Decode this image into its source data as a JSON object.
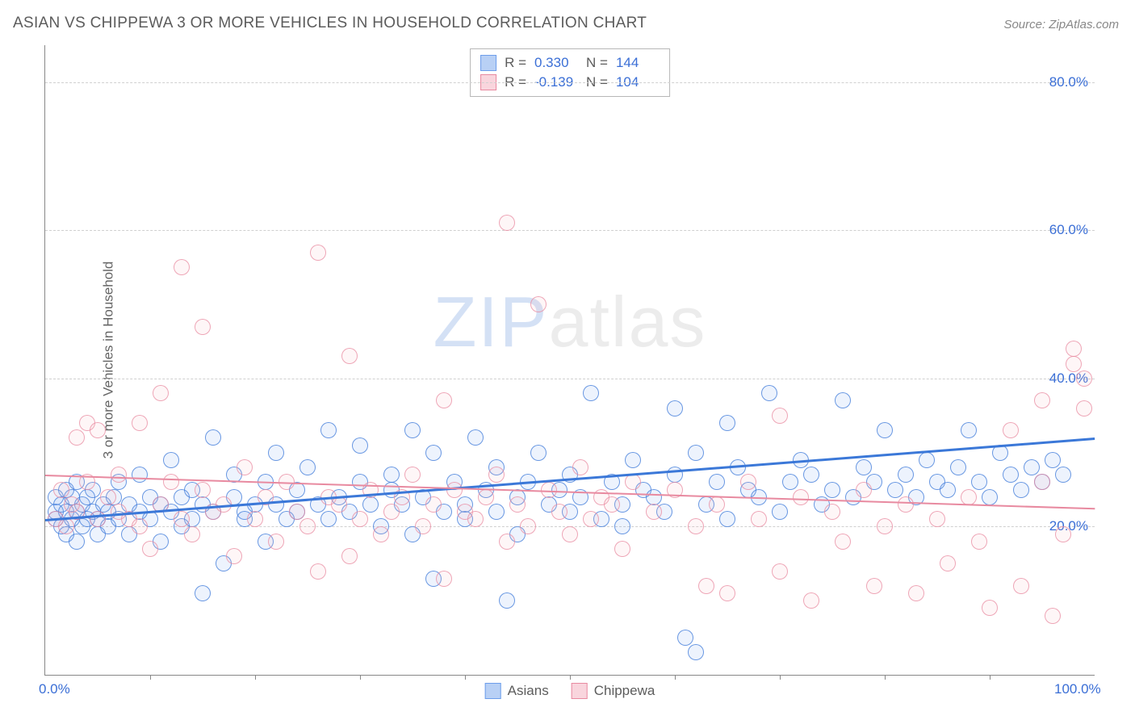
{
  "title": "ASIAN VS CHIPPEWA 3 OR MORE VEHICLES IN HOUSEHOLD CORRELATION CHART",
  "source": "Source: ZipAtlas.com",
  "ylabel": "3 or more Vehicles in Household",
  "watermark": {
    "part1": "ZIP",
    "part2": "atlas"
  },
  "chart": {
    "type": "scatter",
    "background_color": "#ffffff",
    "grid_color": "#d0d0d0",
    "axis_color": "#888888",
    "tick_label_color": "#3b6fd6",
    "text_color": "#666666",
    "title_color": "#5c5c5c",
    "title_fontsize": 19,
    "label_fontsize": 17,
    "tick_fontsize": 17,
    "xlim": [
      0,
      100
    ],
    "ylim": [
      0,
      85
    ],
    "xticks_minor_step": 10,
    "xtick_labels": [
      {
        "value": 0,
        "label": "0.0%"
      },
      {
        "value": 100,
        "label": "100.0%"
      }
    ],
    "yticks": [
      {
        "value": 20,
        "label": "20.0%"
      },
      {
        "value": 40,
        "label": "40.0%"
      },
      {
        "value": 60,
        "label": "60.0%"
      },
      {
        "value": 80,
        "label": "80.0%"
      }
    ],
    "marker_radius": 9,
    "marker_fill_opacity": 0.12,
    "marker_stroke_opacity": 0.75,
    "marker_stroke_width": 1.3,
    "series": [
      {
        "name": "Asians",
        "color": "#6d9eeb",
        "stroke": "#3b78d8",
        "trend": {
          "x1": 0,
          "y1": 21,
          "x2": 100,
          "y2": 32,
          "color": "#3b78d8",
          "width": 2.5
        },
        "stats": {
          "R": "0.330",
          "N": "144"
        },
        "points": [
          [
            1,
            22
          ],
          [
            1,
            21
          ],
          [
            1,
            24
          ],
          [
            1.5,
            20
          ],
          [
            1.5,
            23
          ],
          [
            2,
            22
          ],
          [
            2,
            25
          ],
          [
            2,
            19
          ],
          [
            2.5,
            21
          ],
          [
            2.5,
            24
          ],
          [
            3,
            22
          ],
          [
            3,
            18
          ],
          [
            3,
            26
          ],
          [
            3.5,
            23
          ],
          [
            3.5,
            20
          ],
          [
            4,
            21
          ],
          [
            4,
            24
          ],
          [
            4.5,
            22
          ],
          [
            4.5,
            25
          ],
          [
            5,
            21
          ],
          [
            5,
            19
          ],
          [
            5.5,
            23
          ],
          [
            6,
            22
          ],
          [
            6,
            20
          ],
          [
            6.5,
            24
          ],
          [
            7,
            21
          ],
          [
            7,
            26
          ],
          [
            8,
            23
          ],
          [
            8,
            19
          ],
          [
            9,
            22
          ],
          [
            9,
            27
          ],
          [
            10,
            24
          ],
          [
            10,
            21
          ],
          [
            11,
            23
          ],
          [
            11,
            18
          ],
          [
            12,
            22
          ],
          [
            12,
            29
          ],
          [
            13,
            24
          ],
          [
            13,
            20
          ],
          [
            14,
            21
          ],
          [
            14,
            25
          ],
          [
            15,
            23
          ],
          [
            15,
            11
          ],
          [
            16,
            32
          ],
          [
            16,
            22
          ],
          [
            17,
            15
          ],
          [
            18,
            24
          ],
          [
            18,
            27
          ],
          [
            19,
            22
          ],
          [
            19,
            21
          ],
          [
            20,
            23
          ],
          [
            21,
            26
          ],
          [
            21,
            18
          ],
          [
            22,
            30
          ],
          [
            22,
            23
          ],
          [
            23,
            21
          ],
          [
            24,
            25
          ],
          [
            24,
            22
          ],
          [
            25,
            28
          ],
          [
            26,
            23
          ],
          [
            27,
            33
          ],
          [
            27,
            21
          ],
          [
            28,
            24
          ],
          [
            29,
            22
          ],
          [
            30,
            31
          ],
          [
            30,
            26
          ],
          [
            31,
            23
          ],
          [
            32,
            20
          ],
          [
            33,
            25
          ],
          [
            33,
            27
          ],
          [
            34,
            23
          ],
          [
            35,
            33
          ],
          [
            35,
            19
          ],
          [
            36,
            24
          ],
          [
            37,
            30
          ],
          [
            37,
            13
          ],
          [
            38,
            22
          ],
          [
            39,
            26
          ],
          [
            40,
            23
          ],
          [
            40,
            21
          ],
          [
            41,
            32
          ],
          [
            42,
            25
          ],
          [
            43,
            22
          ],
          [
            43,
            28
          ],
          [
            44,
            10
          ],
          [
            45,
            24
          ],
          [
            45,
            19
          ],
          [
            46,
            26
          ],
          [
            47,
            30
          ],
          [
            48,
            23
          ],
          [
            49,
            25
          ],
          [
            50,
            22
          ],
          [
            50,
            27
          ],
          [
            51,
            24
          ],
          [
            52,
            38
          ],
          [
            53,
            21
          ],
          [
            54,
            26
          ],
          [
            55,
            23
          ],
          [
            55,
            20
          ],
          [
            56,
            29
          ],
          [
            57,
            25
          ],
          [
            58,
            24
          ],
          [
            59,
            22
          ],
          [
            60,
            36
          ],
          [
            60,
            27
          ],
          [
            61,
            5
          ],
          [
            62,
            30
          ],
          [
            62,
            3
          ],
          [
            63,
            23
          ],
          [
            64,
            26
          ],
          [
            65,
            34
          ],
          [
            65,
            21
          ],
          [
            66,
            28
          ],
          [
            67,
            25
          ],
          [
            68,
            24
          ],
          [
            69,
            38
          ],
          [
            70,
            22
          ],
          [
            71,
            26
          ],
          [
            72,
            29
          ],
          [
            73,
            27
          ],
          [
            74,
            23
          ],
          [
            75,
            25
          ],
          [
            76,
            37
          ],
          [
            77,
            24
          ],
          [
            78,
            28
          ],
          [
            79,
            26
          ],
          [
            80,
            33
          ],
          [
            81,
            25
          ],
          [
            82,
            27
          ],
          [
            83,
            24
          ],
          [
            84,
            29
          ],
          [
            85,
            26
          ],
          [
            86,
            25
          ],
          [
            87,
            28
          ],
          [
            88,
            33
          ],
          [
            89,
            26
          ],
          [
            90,
            24
          ],
          [
            91,
            30
          ],
          [
            92,
            27
          ],
          [
            93,
            25
          ],
          [
            94,
            28
          ],
          [
            95,
            26
          ],
          [
            96,
            29
          ],
          [
            97,
            27
          ]
        ]
      },
      {
        "name": "Chippewa",
        "color": "#f5b5c1",
        "stroke": "#e88aa0",
        "trend": {
          "x1": 0,
          "y1": 27,
          "x2": 100,
          "y2": 22.5,
          "color": "#e88aa0",
          "width": 2.2
        },
        "stats": {
          "R": "-0.139",
          "N": "104"
        },
        "points": [
          [
            1,
            21
          ],
          [
            1.5,
            25
          ],
          [
            2,
            20
          ],
          [
            2.5,
            23
          ],
          [
            3,
            22
          ],
          [
            3,
            32
          ],
          [
            4,
            26
          ],
          [
            4,
            34
          ],
          [
            5,
            21
          ],
          [
            5,
            33
          ],
          [
            6,
            24
          ],
          [
            7,
            22
          ],
          [
            7,
            27
          ],
          [
            8,
            21
          ],
          [
            9,
            34
          ],
          [
            9,
            20
          ],
          [
            10,
            17
          ],
          [
            11,
            23
          ],
          [
            11,
            38
          ],
          [
            12,
            26
          ],
          [
            13,
            55
          ],
          [
            13,
            21
          ],
          [
            14,
            19
          ],
          [
            15,
            47
          ],
          [
            15,
            25
          ],
          [
            16,
            22
          ],
          [
            17,
            23
          ],
          [
            18,
            16
          ],
          [
            19,
            28
          ],
          [
            20,
            21
          ],
          [
            21,
            24
          ],
          [
            22,
            18
          ],
          [
            23,
            26
          ],
          [
            24,
            22
          ],
          [
            25,
            20
          ],
          [
            26,
            57
          ],
          [
            26,
            14
          ],
          [
            27,
            24
          ],
          [
            28,
            23
          ],
          [
            29,
            43
          ],
          [
            29,
            16
          ],
          [
            30,
            21
          ],
          [
            31,
            25
          ],
          [
            32,
            19
          ],
          [
            33,
            22
          ],
          [
            34,
            24
          ],
          [
            35,
            27
          ],
          [
            36,
            20
          ],
          [
            37,
            23
          ],
          [
            38,
            37
          ],
          [
            38,
            13
          ],
          [
            39,
            25
          ],
          [
            40,
            22
          ],
          [
            41,
            21
          ],
          [
            42,
            24
          ],
          [
            43,
            27
          ],
          [
            44,
            61
          ],
          [
            44,
            18
          ],
          [
            45,
            23
          ],
          [
            46,
            20
          ],
          [
            47,
            50
          ],
          [
            48,
            25
          ],
          [
            49,
            22
          ],
          [
            50,
            19
          ],
          [
            51,
            28
          ],
          [
            52,
            21
          ],
          [
            53,
            24
          ],
          [
            54,
            23
          ],
          [
            55,
            17
          ],
          [
            56,
            26
          ],
          [
            58,
            22
          ],
          [
            60,
            25
          ],
          [
            62,
            20
          ],
          [
            63,
            12
          ],
          [
            64,
            23
          ],
          [
            65,
            11
          ],
          [
            67,
            26
          ],
          [
            68,
            21
          ],
          [
            70,
            35
          ],
          [
            70,
            14
          ],
          [
            72,
            24
          ],
          [
            73,
            10
          ],
          [
            75,
            22
          ],
          [
            76,
            18
          ],
          [
            78,
            25
          ],
          [
            79,
            12
          ],
          [
            80,
            20
          ],
          [
            82,
            23
          ],
          [
            83,
            11
          ],
          [
            85,
            21
          ],
          [
            86,
            15
          ],
          [
            88,
            24
          ],
          [
            89,
            18
          ],
          [
            90,
            9
          ],
          [
            92,
            33
          ],
          [
            93,
            12
          ],
          [
            95,
            26
          ],
          [
            95,
            37
          ],
          [
            96,
            8
          ],
          [
            97,
            19
          ],
          [
            98,
            44
          ],
          [
            98,
            42
          ],
          [
            99,
            40
          ],
          [
            99,
            36
          ]
        ]
      }
    ]
  },
  "bottom_legend": [
    {
      "label": "Asians",
      "fill": "#b8d0f5",
      "stroke": "#6d9eeb"
    },
    {
      "label": "Chippewa",
      "fill": "#f9d5dd",
      "stroke": "#e88aa0"
    }
  ]
}
